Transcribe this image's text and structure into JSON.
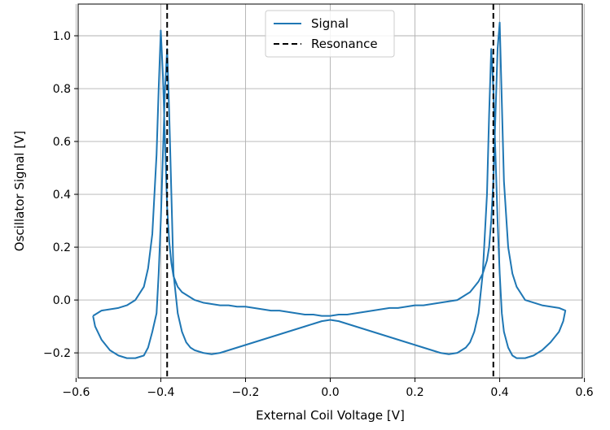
{
  "chart_data": {
    "type": "line",
    "xlabel": "External Coil Voltage [V]",
    "ylabel": "Oscillator Signal [V]",
    "xlim": [
      -0.595,
      0.595
    ],
    "ylim": [
      -0.295,
      1.12
    ],
    "xticks": [
      -0.6,
      -0.4,
      -0.2,
      0.0,
      0.2,
      0.4,
      0.6
    ],
    "xtick_labels": [
      "−0.6",
      "−0.4",
      "−0.2",
      "0.0",
      "0.2",
      "0.4",
      "0.6"
    ],
    "yticks": [
      -0.2,
      0.0,
      0.2,
      0.4,
      0.6,
      0.8,
      1.0
    ],
    "ytick_labels": [
      "−0.2",
      "0.0",
      "0.2",
      "0.4",
      "0.6",
      "0.8",
      "1.0"
    ],
    "grid": true,
    "legend_position": "top-center",
    "colors": {
      "signal": "#1f77b4",
      "resonance": "#000000"
    },
    "series": [
      {
        "name": "Signal",
        "style": "solid",
        "x": [
          -0.56,
          -0.54,
          -0.52,
          -0.5,
          -0.48,
          -0.46,
          -0.44,
          -0.43,
          -0.42,
          -0.41,
          -0.405,
          -0.4,
          -0.395,
          -0.39,
          -0.385,
          -0.38,
          -0.375,
          -0.37,
          -0.36,
          -0.35,
          -0.34,
          -0.33,
          -0.32,
          -0.3,
          -0.28,
          -0.26,
          -0.24,
          -0.22,
          -0.2,
          -0.18,
          -0.16,
          -0.14,
          -0.12,
          -0.1,
          -0.08,
          -0.06,
          -0.04,
          -0.02,
          0.0,
          0.02,
          0.04,
          0.06,
          0.08,
          0.1,
          0.12,
          0.14,
          0.16,
          0.18,
          0.2,
          0.22,
          0.24,
          0.26,
          0.28,
          0.3,
          0.32,
          0.33,
          0.34,
          0.35,
          0.36,
          0.37,
          0.375,
          0.38,
          0.385,
          0.39,
          0.395,
          0.4,
          0.405,
          0.41,
          0.42,
          0.43,
          0.44,
          0.46,
          0.48,
          0.5,
          0.52,
          0.54,
          0.555,
          0.55,
          0.54,
          0.52,
          0.5,
          0.48,
          0.46,
          0.44,
          0.43,
          0.42,
          0.41,
          0.405,
          0.4,
          0.395,
          0.39,
          0.385,
          0.38,
          0.375,
          0.37,
          0.36,
          0.35,
          0.34,
          0.33,
          0.32,
          0.3,
          0.28,
          0.26,
          0.24,
          0.22,
          0.2,
          0.18,
          0.16,
          0.14,
          0.12,
          0.1,
          0.08,
          0.06,
          0.04,
          0.02,
          0.0,
          -0.02,
          -0.04,
          -0.06,
          -0.08,
          -0.1,
          -0.12,
          -0.14,
          -0.16,
          -0.18,
          -0.2,
          -0.22,
          -0.24,
          -0.26,
          -0.28,
          -0.3,
          -0.32,
          -0.33,
          -0.34,
          -0.35,
          -0.36,
          -0.37,
          -0.375,
          -0.38,
          -0.385,
          -0.39,
          -0.395,
          -0.4,
          -0.405,
          -0.41,
          -0.42,
          -0.43,
          -0.44,
          -0.46,
          -0.48,
          -0.5,
          -0.52,
          -0.54,
          -0.555,
          -0.56
        ],
        "y": [
          -0.06,
          -0.04,
          -0.035,
          -0.03,
          -0.02,
          0.0,
          0.05,
          0.12,
          0.25,
          0.55,
          0.8,
          1.02,
          0.85,
          0.6,
          0.35,
          0.22,
          0.14,
          0.09,
          0.05,
          0.03,
          0.02,
          0.01,
          0.0,
          -0.01,
          -0.015,
          -0.02,
          -0.02,
          -0.025,
          -0.025,
          -0.03,
          -0.035,
          -0.04,
          -0.04,
          -0.045,
          -0.05,
          -0.055,
          -0.055,
          -0.06,
          -0.06,
          -0.055,
          -0.055,
          -0.05,
          -0.045,
          -0.04,
          -0.035,
          -0.03,
          -0.03,
          -0.025,
          -0.02,
          -0.02,
          -0.015,
          -0.01,
          -0.005,
          0.0,
          0.02,
          0.03,
          0.05,
          0.07,
          0.1,
          0.15,
          0.2,
          0.3,
          0.45,
          0.7,
          0.95,
          1.05,
          0.75,
          0.45,
          0.2,
          0.1,
          0.05,
          0.0,
          -0.01,
          -0.02,
          -0.025,
          -0.03,
          -0.04,
          -0.08,
          -0.12,
          -0.16,
          -0.19,
          -0.21,
          -0.22,
          -0.22,
          -0.21,
          -0.18,
          -0.12,
          -0.05,
          0.1,
          0.3,
          0.55,
          0.8,
          0.95,
          0.7,
          0.4,
          0.1,
          -0.05,
          -0.12,
          -0.16,
          -0.18,
          -0.2,
          -0.205,
          -0.2,
          -0.19,
          -0.18,
          -0.17,
          -0.16,
          -0.15,
          -0.14,
          -0.13,
          -0.12,
          -0.11,
          -0.1,
          -0.09,
          -0.08,
          -0.075,
          -0.08,
          -0.09,
          -0.1,
          -0.11,
          -0.12,
          -0.13,
          -0.14,
          -0.15,
          -0.16,
          -0.17,
          -0.18,
          -0.19,
          -0.2,
          -0.205,
          -0.2,
          -0.19,
          -0.18,
          -0.16,
          -0.12,
          -0.05,
          0.1,
          0.4,
          0.7,
          0.95,
          0.8,
          0.55,
          0.3,
          0.1,
          -0.05,
          -0.12,
          -0.18,
          -0.21,
          -0.22,
          -0.22,
          -0.21,
          -0.19,
          -0.15,
          -0.1,
          -0.06
        ]
      },
      {
        "name": "Resonance",
        "style": "dashed",
        "x": [
          -0.385,
          0.385
        ],
        "type": "vline"
      }
    ]
  }
}
